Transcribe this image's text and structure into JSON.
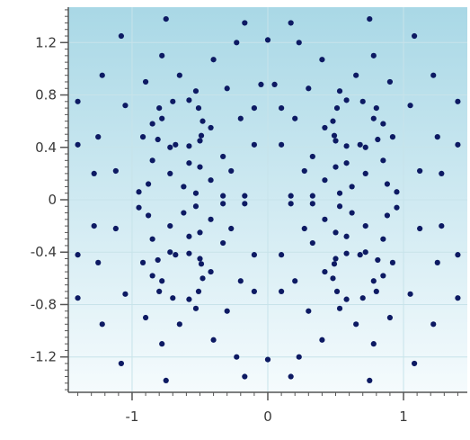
{
  "chart_data": {
    "type": "scatter",
    "title": "",
    "xlabel": "",
    "ylabel": "",
    "xlim": [
      -1.47,
      1.47
    ],
    "ylim": [
      -1.47,
      1.47
    ],
    "x_ticks": [
      -1,
      0,
      1
    ],
    "x_tick_labels": [
      "-1",
      "0",
      "1"
    ],
    "y_ticks": [
      1.2,
      0.8,
      0.4,
      0,
      -0.4,
      -0.8,
      -1.2
    ],
    "y_tick_labels": [
      "1.2",
      "0.8",
      "0.4",
      "0",
      "-0.4",
      "-0.8",
      "-1.2"
    ],
    "x_minor_step": 0.1,
    "y_minor_step": 0.05,
    "grid": true,
    "legend": "none",
    "colors": {
      "marker": "#0d1a63",
      "plot_bg_top": "#a9d8e6",
      "plot_bg_bottom": "#f5fbfd",
      "grid": "#c7e3ea",
      "axis": "#555555"
    },
    "points_pattern": {
      "symmetry": "mirror about x=0 and y=0",
      "quadrant_points": [
        [
          0.1,
          0.42
        ],
        [
          0.1,
          0.7
        ],
        [
          0.17,
          1.35
        ],
        [
          0.17,
          0.03
        ],
        [
          0.2,
          0.62
        ],
        [
          0.23,
          1.2
        ],
        [
          0.27,
          0.22
        ],
        [
          0.33,
          0.33
        ],
        [
          0.33,
          0.03
        ],
        [
          0.4,
          1.07
        ],
        [
          0.42,
          0.55
        ],
        [
          0.42,
          0.15
        ],
        [
          0.5,
          0.45
        ],
        [
          0.5,
          0.25
        ],
        [
          0.53,
          0.83
        ],
        [
          0.53,
          0.05
        ],
        [
          0.58,
          0.28
        ],
        [
          0.62,
          0.1
        ],
        [
          0.65,
          0.95
        ],
        [
          0.68,
          0.42
        ],
        [
          0.72,
          0.2
        ],
        [
          0.78,
          1.1
        ],
        [
          0.78,
          0.62
        ],
        [
          0.85,
          0.3
        ],
        [
          0.9,
          0.9
        ],
        [
          0.92,
          0.48
        ],
        [
          0.95,
          0.06
        ],
        [
          1.05,
          0.72
        ],
        [
          1.08,
          1.25
        ],
        [
          1.12,
          0.22
        ],
        [
          1.22,
          0.95
        ],
        [
          1.25,
          0.48
        ],
        [
          1.4,
          0.75
        ],
        [
          1.4,
          0.42
        ],
        [
          1.28,
          0.2
        ],
        [
          0.3,
          0.85
        ],
        [
          0.88,
          0.12
        ],
        [
          0.58,
          0.76
        ],
        [
          0.7,
          0.75
        ],
        [
          0.8,
          0.7
        ],
        [
          0.85,
          0.58
        ],
        [
          0.81,
          0.46
        ],
        [
          0.72,
          0.4
        ],
        [
          0.58,
          0.41
        ],
        [
          0.49,
          0.49
        ],
        [
          0.48,
          0.6
        ],
        [
          0.51,
          0.7
        ]
      ],
      "extra_points": [
        [
          0.05,
          0.88
        ],
        [
          -0.05,
          0.88
        ],
        [
          0.0,
          1.22
        ],
        [
          0.0,
          -1.22
        ],
        [
          -0.75,
          1.38
        ],
        [
          0.75,
          1.38
        ],
        [
          -0.75,
          -1.38
        ],
        [
          0.75,
          -1.38
        ]
      ]
    }
  }
}
